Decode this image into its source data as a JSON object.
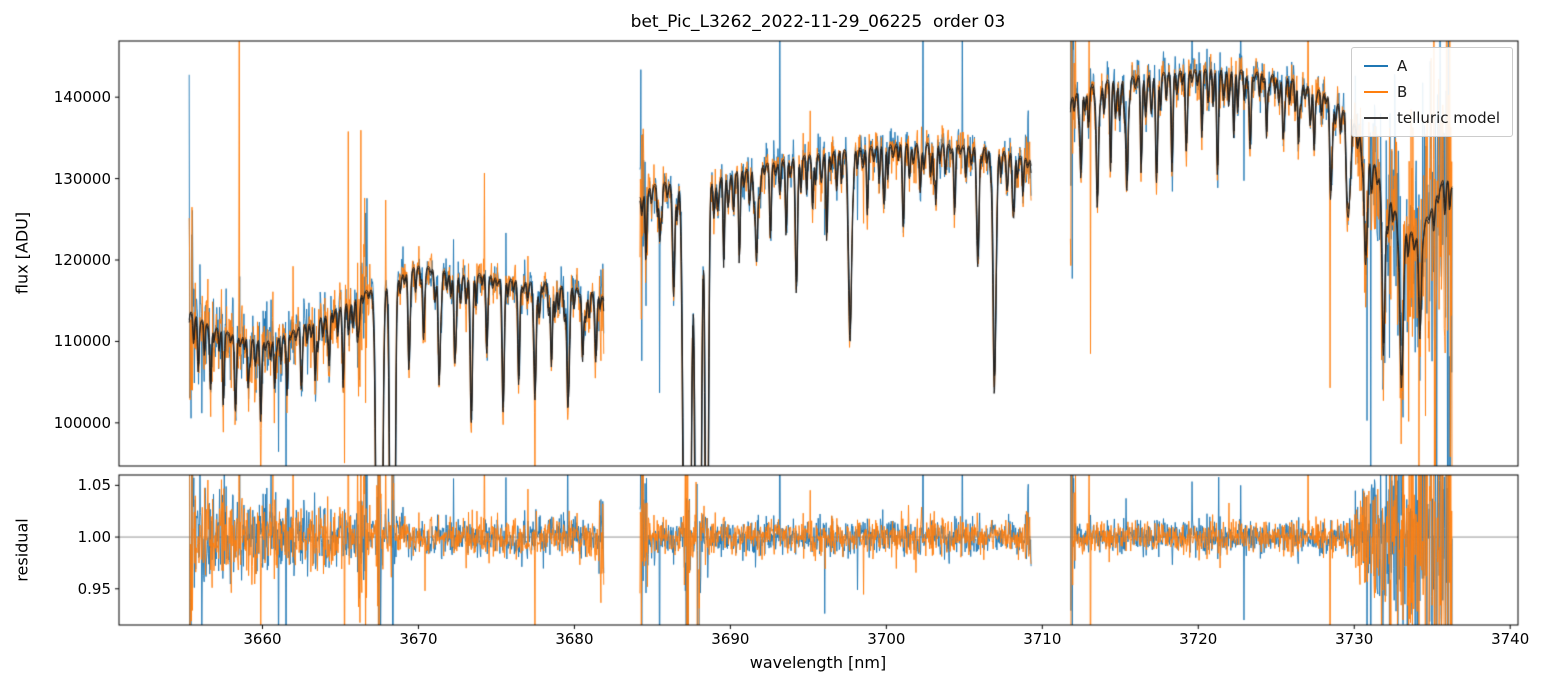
{
  "title": "bet_Pic_L3262_2022-11-29_06225  order 03",
  "chart_data": {
    "type": "line",
    "title": "bet_Pic_L3262_2022-11-29_06225  order 03",
    "xlabel": "wavelength [nm]",
    "xlim": [
      3650.8,
      3740.5
    ],
    "xticks": [
      3660,
      3670,
      3680,
      3690,
      3700,
      3710,
      3720,
      3730,
      3740
    ],
    "panels": [
      {
        "name": "flux",
        "ylabel": "flux [ADU]",
        "ylim": [
          94700,
          146900
        ],
        "yticks": [
          100000,
          110000,
          120000,
          130000,
          140000
        ],
        "ytick_labels": [
          "100000",
          "110000",
          "120000",
          "130000",
          "140000"
        ]
      },
      {
        "name": "residual",
        "ylabel": "residual",
        "ylim": [
          0.915,
          1.06
        ],
        "yticks": [
          0.95,
          1.0,
          1.05
        ],
        "ytick_labels": [
          "0.95",
          "1.00",
          "1.05"
        ],
        "axhline": 1.0
      }
    ],
    "legend": {
      "position": "upper right",
      "entries": [
        {
          "label": "A",
          "color": "#1f77b4"
        },
        {
          "label": "B",
          "color": "#ff7f0e"
        },
        {
          "label": "telluric model",
          "color": "#3a3a3a"
        }
      ]
    },
    "model": {
      "b_shift_nm": 0.03,
      "b_exponent": 1.08,
      "b_scale": 0.998
    },
    "noise": {
      "base": 1150,
      "heavy_tail_prob": 0.005,
      "residual_floor": 2200,
      "spike_regions": [
        [
          3666.4,
          0.3,
          4
        ],
        [
          3684.5,
          0.3,
          2.5
        ],
        [
          3711.9,
          0.25,
          3
        ]
      ],
      "spikes": [
        [
          "A",
          3656.1,
          -17000
        ],
        [
          "B",
          3659.9,
          -14000
        ],
        [
          "B",
          3666.3,
          16000
        ],
        [
          "B",
          3666.55,
          19000
        ],
        [
          "A",
          3666.7,
          12000
        ],
        [
          "B",
          3681.95,
          -26000
        ],
        [
          "A",
          3702.35,
          24000
        ],
        [
          "B",
          3709.5,
          -28000
        ],
        [
          "A",
          3711.95,
          26000
        ],
        [
          "B",
          3713.1,
          -34000
        ],
        [
          "A",
          3719.6,
          8000
        ],
        [
          "A",
          3721.3,
          7500
        ],
        [
          "B",
          3735.2,
          -20000
        ]
      ]
    },
    "seed": 7,
    "segments": [
      {
        "range": [
          3655.3,
          3681.9
        ],
        "continuum": [
          [
            3655.3,
            113800
          ],
          [
            3656.5,
            112200
          ],
          [
            3657.5,
            111300
          ],
          [
            3658.5,
            110700
          ],
          [
            3659.5,
            110300
          ],
          [
            3660.5,
            110100
          ],
          [
            3661.5,
            110900
          ],
          [
            3662.5,
            112000
          ],
          [
            3663.5,
            112800
          ],
          [
            3664.5,
            113800
          ],
          [
            3665.5,
            115000
          ],
          [
            3666.5,
            116200
          ],
          [
            3667.5,
            116600
          ],
          [
            3668.5,
            117400
          ],
          [
            3669.3,
            118900
          ],
          [
            3670.2,
            119400
          ],
          [
            3671.2,
            119000
          ],
          [
            3672.2,
            118400
          ],
          [
            3673.2,
            118200
          ],
          [
            3674.2,
            118400
          ],
          [
            3675.2,
            117800
          ],
          [
            3676.2,
            117600
          ],
          [
            3677.2,
            117400
          ],
          [
            3678.2,
            117300
          ],
          [
            3679.2,
            116900
          ],
          [
            3680.2,
            116600
          ],
          [
            3681.0,
            116300
          ],
          [
            3681.9,
            115500
          ]
        ],
        "lines": [
          [
            3655.9,
            0.05,
            0.05
          ],
          [
            3656.7,
            0.06,
            0.05
          ],
          [
            3657.5,
            0.05,
            0.05
          ],
          [
            3658.3,
            0.07,
            0.06
          ],
          [
            3659.1,
            0.05,
            0.05
          ],
          [
            3659.9,
            0.06,
            0.05
          ],
          [
            3660.8,
            0.05,
            0.05
          ],
          [
            3661.6,
            0.06,
            0.05
          ],
          [
            3662.5,
            0.05,
            0.05
          ],
          [
            3663.4,
            0.06,
            0.05
          ],
          [
            3664.3,
            0.05,
            0.05
          ],
          [
            3665.2,
            0.05,
            0.05
          ],
          [
            3666.1,
            0.04,
            0.05
          ],
          [
            3667.5,
            0.97,
            0.13
          ],
          [
            3668.35,
            0.93,
            0.11
          ],
          [
            3669.4,
            0.08,
            0.06
          ],
          [
            3670.35,
            0.07,
            0.06
          ],
          [
            3671.35,
            0.11,
            0.07
          ],
          [
            3672.35,
            0.08,
            0.06
          ],
          [
            3673.4,
            0.12,
            0.07
          ],
          [
            3674.4,
            0.07,
            0.06
          ],
          [
            3675.45,
            0.12,
            0.07
          ],
          [
            3676.45,
            0.07,
            0.06
          ],
          [
            3677.5,
            0.11,
            0.07
          ],
          [
            3678.55,
            0.08,
            0.06
          ],
          [
            3679.6,
            0.11,
            0.07
          ],
          [
            3680.55,
            0.07,
            0.06
          ],
          [
            3681.4,
            0.06,
            0.06
          ]
        ]
      },
      {
        "range": [
          3684.2,
          3709.3
        ],
        "continuum": [
          [
            3684.2,
            127800
          ],
          [
            3685.0,
            129200
          ],
          [
            3685.8,
            129600
          ],
          [
            3686.6,
            129200
          ],
          [
            3687.6,
            128800
          ],
          [
            3688.6,
            129400
          ],
          [
            3689.5,
            130300
          ],
          [
            3690.5,
            131000
          ],
          [
            3691.5,
            131400
          ],
          [
            3692.5,
            132000
          ],
          [
            3693.5,
            132400
          ],
          [
            3694.5,
            132800
          ],
          [
            3695.5,
            133100
          ],
          [
            3696.5,
            133400
          ],
          [
            3697.5,
            133600
          ],
          [
            3698.5,
            133900
          ],
          [
            3700.0,
            134200
          ],
          [
            3701.5,
            134400
          ],
          [
            3703.0,
            134400
          ],
          [
            3704.5,
            134200
          ],
          [
            3706.0,
            134000
          ],
          [
            3707.0,
            133700
          ],
          [
            3708.0,
            133200
          ],
          [
            3709.3,
            132300
          ]
        ],
        "lines": [
          [
            3684.6,
            0.05,
            0.05
          ],
          [
            3685.5,
            0.05,
            0.05
          ],
          [
            3686.4,
            0.08,
            0.06
          ],
          [
            3687.25,
            1.0,
            0.16
          ],
          [
            3687.95,
            1.0,
            0.13
          ],
          [
            3688.5,
            0.5,
            0.09
          ],
          [
            3689.6,
            0.06,
            0.05
          ],
          [
            3690.6,
            0.05,
            0.05
          ],
          [
            3691.7,
            0.08,
            0.07
          ],
          [
            3692.6,
            0.04,
            0.05
          ],
          [
            3693.6,
            0.05,
            0.05
          ],
          [
            3694.25,
            0.1,
            0.07
          ],
          [
            3695.3,
            0.04,
            0.05
          ],
          [
            3696.2,
            0.05,
            0.05
          ],
          [
            3697.7,
            0.16,
            0.09
          ],
          [
            3698.8,
            0.05,
            0.05
          ],
          [
            3699.9,
            0.04,
            0.05
          ],
          [
            3701.1,
            0.06,
            0.06
          ],
          [
            3702.2,
            0.04,
            0.05
          ],
          [
            3703.2,
            0.05,
            0.05
          ],
          [
            3704.4,
            0.04,
            0.05
          ],
          [
            3705.9,
            0.09,
            0.07
          ],
          [
            3706.95,
            0.21,
            0.09
          ],
          [
            3708.2,
            0.05,
            0.05
          ]
        ]
      },
      {
        "range": [
          3711.8,
          3736.3
        ],
        "continuum": [
          [
            3711.8,
            139800
          ],
          [
            3712.6,
            141200
          ],
          [
            3713.6,
            141900
          ],
          [
            3715.0,
            142400
          ],
          [
            3716.5,
            142800
          ],
          [
            3718.0,
            143100
          ],
          [
            3719.5,
            143400
          ],
          [
            3721.0,
            143500
          ],
          [
            3722.5,
            143400
          ],
          [
            3724.0,
            143100
          ],
          [
            3725.5,
            142600
          ],
          [
            3726.8,
            141800
          ],
          [
            3728.0,
            140700
          ],
          [
            3729.0,
            139200
          ],
          [
            3730.0,
            136800
          ],
          [
            3731.0,
            133200
          ],
          [
            3732.0,
            128800
          ],
          [
            3733.0,
            124500
          ],
          [
            3734.0,
            123000
          ],
          [
            3735.0,
            126500
          ],
          [
            3735.8,
            130500
          ],
          [
            3736.3,
            129000
          ]
        ],
        "lines": [
          [
            3712.5,
            0.07,
            0.06
          ],
          [
            3713.55,
            0.1,
            0.07
          ],
          [
            3714.4,
            0.05,
            0.05
          ],
          [
            3715.45,
            0.09,
            0.07
          ],
          [
            3716.35,
            0.05,
            0.05
          ],
          [
            3717.35,
            0.08,
            0.07
          ],
          [
            3718.35,
            0.05,
            0.05
          ],
          [
            3719.25,
            0.06,
            0.06
          ],
          [
            3720.25,
            0.04,
            0.05
          ],
          [
            3721.25,
            0.06,
            0.06
          ],
          [
            3722.3,
            0.04,
            0.05
          ],
          [
            3723.35,
            0.06,
            0.06
          ],
          [
            3724.4,
            0.05,
            0.05
          ],
          [
            3725.45,
            0.04,
            0.05
          ],
          [
            3726.45,
            0.05,
            0.05
          ],
          [
            3727.45,
            0.05,
            0.05
          ],
          [
            3728.55,
            0.06,
            0.08
          ],
          [
            3729.65,
            0.08,
            0.1
          ],
          [
            3730.75,
            0.1,
            0.1
          ],
          [
            3731.9,
            0.12,
            0.1
          ],
          [
            3733.05,
            0.15,
            0.1
          ],
          [
            3734.25,
            0.09,
            0.08
          ]
        ]
      }
    ]
  }
}
